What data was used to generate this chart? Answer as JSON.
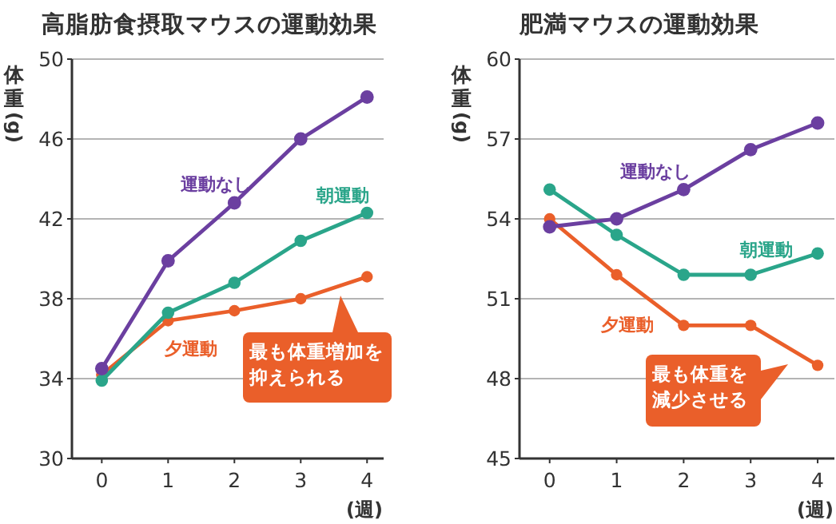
{
  "chart_data": [
    {
      "type": "line",
      "title": "高脂肪食摂取マウスの運動効果",
      "xlabel": "(週)",
      "ylabel": "体重(g)",
      "x": [
        0,
        1,
        2,
        3,
        4
      ],
      "xlim": [
        -0.45,
        4.25
      ],
      "xticks": [
        0,
        1,
        2,
        3,
        4
      ],
      "ylim": [
        30,
        50
      ],
      "yticks": [
        30,
        34,
        38,
        42,
        46,
        50
      ],
      "grid": "y",
      "legend": false,
      "marker": "circle",
      "line_style": "solid",
      "series": [
        {
          "name": "運動なし",
          "color": "#6b3fa0",
          "values": [
            34.5,
            39.9,
            42.8,
            46.0,
            48.1
          ]
        },
        {
          "name": "朝運動",
          "color": "#2aa58a",
          "values": [
            33.9,
            37.3,
            38.8,
            40.9,
            42.3
          ]
        },
        {
          "name": "夕運動",
          "color": "#ea5f2a",
          "values": [
            34.2,
            36.9,
            37.4,
            38.0,
            39.1
          ]
        }
      ],
      "annotations": [
        "最も体重増加を抑えられる"
      ]
    },
    {
      "type": "line",
      "title": "肥満マウスの運動効果",
      "xlabel": "(週)",
      "ylabel": "体重(g)",
      "x": [
        0,
        1,
        2,
        3,
        4
      ],
      "xlim": [
        -0.45,
        4.25
      ],
      "xticks": [
        0,
        1,
        2,
        3,
        4
      ],
      "ylim": [
        45,
        60
      ],
      "yticks": [
        45,
        48,
        51,
        54,
        57,
        60
      ],
      "grid": "y",
      "legend": false,
      "marker": "circle",
      "line_style": "solid",
      "series": [
        {
          "name": "運動なし",
          "color": "#6b3fa0",
          "values": [
            53.7,
            54.0,
            55.1,
            56.6,
            57.6
          ]
        },
        {
          "name": "朝運動",
          "color": "#2aa58a",
          "values": [
            55.1,
            53.4,
            51.9,
            51.9,
            52.7
          ]
        },
        {
          "name": "夕運動",
          "color": "#ea5f2a",
          "values": [
            54.0,
            51.9,
            50.0,
            50.0,
            48.5
          ]
        }
      ],
      "annotations": [
        "最も体重を減少させる"
      ]
    }
  ]
}
